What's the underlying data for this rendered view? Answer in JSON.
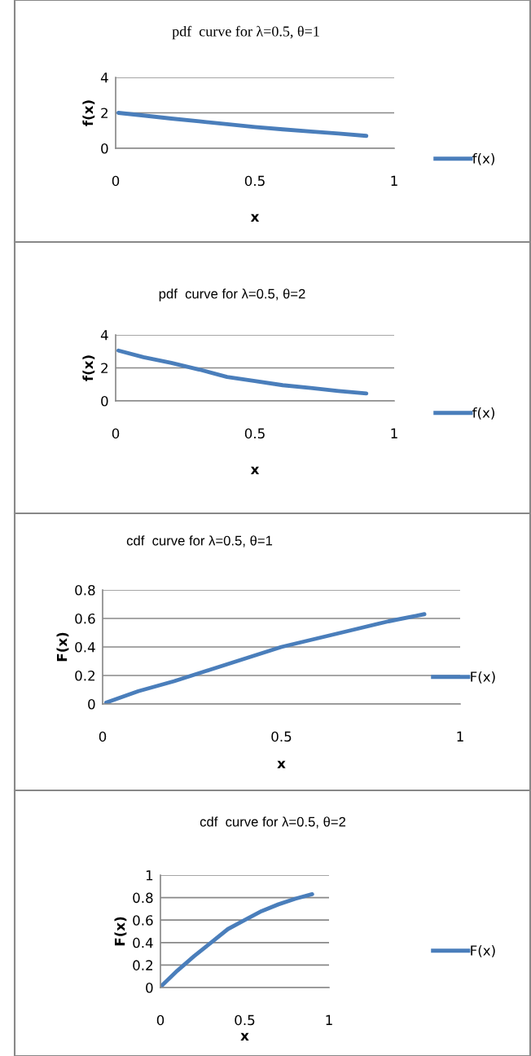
{
  "chart_data": [
    {
      "type": "line",
      "title": "pdf  curve for λ=0.5, θ=1",
      "xlabel": "x",
      "ylabel": "f(x)",
      "x": [
        0.01,
        0.1,
        0.2,
        0.3,
        0.4,
        0.5,
        0.6,
        0.7,
        0.8,
        0.9
      ],
      "series": [
        {
          "name": "f(x)",
          "color": "#4a7ebb",
          "values": [
            2.0,
            1.85,
            1.68,
            1.52,
            1.36,
            1.2,
            1.07,
            0.95,
            0.83,
            0.7
          ]
        }
      ],
      "xlim": [
        0,
        1
      ],
      "xticks": [
        0,
        0.5,
        1
      ],
      "ylim": [
        0,
        4
      ],
      "yticks": [
        0,
        2,
        4
      ],
      "grid": "y",
      "legend": "right"
    },
    {
      "type": "line",
      "title": "pdf  curve for λ=0.5, θ=2",
      "xlabel": "x",
      "ylabel": "f(x)",
      "x": [
        0.01,
        0.1,
        0.2,
        0.3,
        0.4,
        0.5,
        0.6,
        0.7,
        0.8,
        0.9
      ],
      "series": [
        {
          "name": "f(x)",
          "color": "#4a7ebb",
          "values": [
            3.05,
            2.65,
            2.3,
            1.9,
            1.45,
            1.2,
            0.95,
            0.78,
            0.6,
            0.45
          ]
        }
      ],
      "xlim": [
        0,
        1
      ],
      "xticks": [
        0,
        0.5,
        1
      ],
      "ylim": [
        0,
        4
      ],
      "yticks": [
        0,
        2,
        4
      ],
      "grid": "y",
      "legend": "right"
    },
    {
      "type": "line",
      "title": "cdf  curve for λ=0.5, θ=1",
      "xlabel": "x",
      "ylabel": "F(x)",
      "x": [
        0.01,
        0.1,
        0.2,
        0.3,
        0.4,
        0.5,
        0.6,
        0.7,
        0.8,
        0.9
      ],
      "series": [
        {
          "name": "F(x)",
          "color": "#4a7ebb",
          "values": [
            0.01,
            0.09,
            0.16,
            0.24,
            0.32,
            0.4,
            0.46,
            0.52,
            0.58,
            0.63
          ]
        }
      ],
      "xlim": [
        0,
        1
      ],
      "xticks": [
        0,
        0.5,
        1
      ],
      "ylim": [
        0,
        0.8
      ],
      "yticks": [
        0,
        0.2,
        0.4,
        0.6,
        0.8
      ],
      "grid": "y",
      "legend": "right"
    },
    {
      "type": "line",
      "title": "cdf  curve for λ=0.5, θ=2",
      "xlabel": "x",
      "ylabel": "F(x)",
      "x": [
        0.01,
        0.1,
        0.2,
        0.3,
        0.4,
        0.5,
        0.6,
        0.7,
        0.8,
        0.9
      ],
      "series": [
        {
          "name": "F(x)",
          "color": "#4a7ebb",
          "values": [
            0.02,
            0.15,
            0.28,
            0.4,
            0.52,
            0.6,
            0.68,
            0.74,
            0.79,
            0.83
          ]
        }
      ],
      "xlim": [
        0,
        1
      ],
      "xticks": [
        0,
        0.5,
        1
      ],
      "ylim": [
        0,
        1
      ],
      "yticks": [
        0,
        0.2,
        0.4,
        0.6,
        0.8,
        1
      ],
      "grid": "y",
      "legend": "right"
    }
  ]
}
